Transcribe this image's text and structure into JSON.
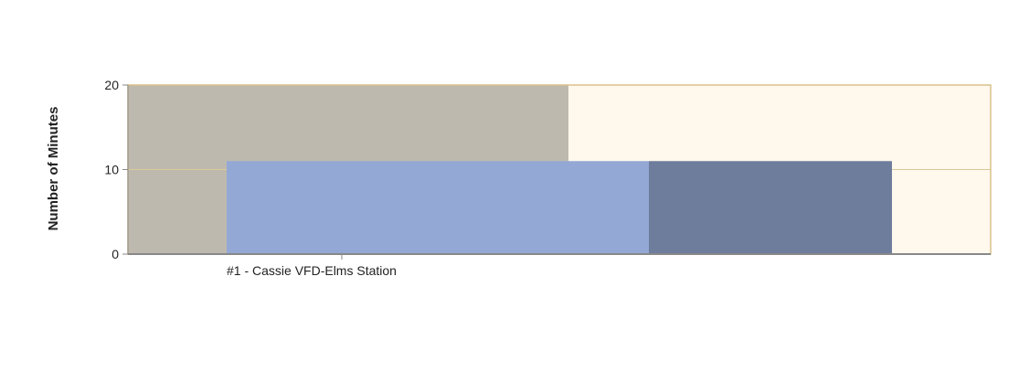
{
  "chart_data": {
    "type": "bar",
    "ylabel": "Number of Minutes",
    "ylim": [
      0,
      20
    ],
    "yticks": [
      0,
      10,
      20
    ],
    "categories": [
      "#1 - Cassie VFD-Elms Station"
    ],
    "grid": "horizontal",
    "series": [
      {
        "values": [
          11
        ],
        "color": "#93A8D4"
      },
      {
        "values": [
          11
        ],
        "color": "#6E7D9C"
      }
    ],
    "colors": {
      "plot_background": "#FFF8EC",
      "band_background": "#BEB9AE",
      "frame": "#D8C08A",
      "axis": "#888888",
      "grid": "#DCC99A"
    }
  }
}
